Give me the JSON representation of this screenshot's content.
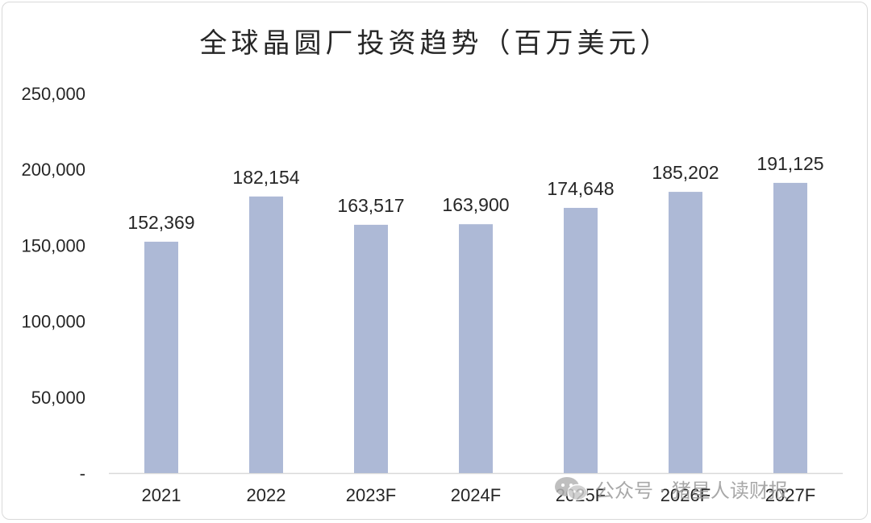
{
  "chart_data": {
    "type": "bar",
    "title": "全球晶圆厂投资趋势（百万美元）",
    "categories": [
      "2021",
      "2022",
      "2023F",
      "2024F",
      "2025F",
      "2026F",
      "2027F"
    ],
    "values": [
      152369,
      182154,
      163517,
      163900,
      174648,
      185202,
      191125
    ],
    "data_labels": [
      "152,369",
      "182,154",
      "163,517",
      "163,900",
      "174,648",
      "185,202",
      "191,125"
    ],
    "ylim": [
      0,
      250000
    ],
    "yticks": [
      0,
      50000,
      100000,
      150000,
      200000,
      250000
    ],
    "ytick_labels": [
      "-",
      "50,000",
      "100,000",
      "150,000",
      "200,000",
      "250,000"
    ],
    "xlabel": "",
    "ylabel": "",
    "grid": false,
    "legend": "none",
    "bar_color": "#adb9d6",
    "axis_color": "#d9d9d9",
    "text_color": "#262626"
  },
  "watermark": {
    "icon": "wechat-icon",
    "text": "公众号 · 猪星人读财报"
  }
}
